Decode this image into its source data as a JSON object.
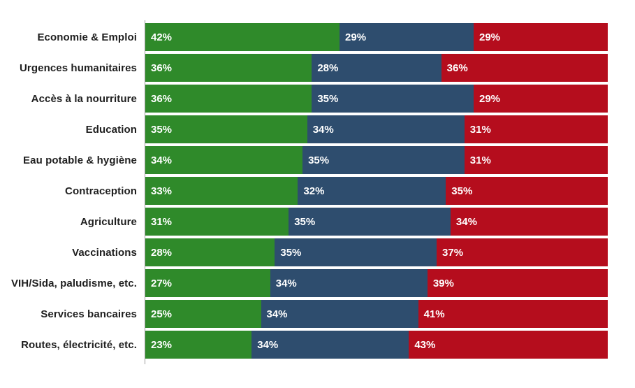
{
  "page": {
    "background": "#ffffff"
  },
  "colors": {
    "axis_line": "#9a9a9a",
    "category_text": "#1f1f1f",
    "value_text": "#ffffff",
    "series_green": "#2f8a2a",
    "series_blue": "#2e4d6e",
    "series_red": "#b50d1d"
  },
  "chart_data": {
    "type": "bar",
    "variant": "stacked-horizontal",
    "title": "",
    "xlabel": "",
    "ylabel": "",
    "xlim": [
      0,
      100
    ],
    "value_suffix": "%",
    "grid": false,
    "legend": "none",
    "categories": [
      "Economie & Emploi",
      "Urgences humanitaires",
      "Accès à la nourriture",
      "Education",
      "Eau potable & hygiène",
      "Contraception",
      "Agriculture",
      "Vaccinations",
      "VIH/Sida, paludisme, etc.",
      "Services bancaires",
      "Routes, électricité, etc."
    ],
    "series": [
      {
        "name": "green",
        "color": "#2f8a2a",
        "values": [
          42,
          36,
          36,
          35,
          34,
          33,
          31,
          28,
          27,
          25,
          23
        ]
      },
      {
        "name": "blue",
        "color": "#2e4d6e",
        "values": [
          29,
          28,
          35,
          34,
          35,
          32,
          35,
          35,
          34,
          34,
          34
        ]
      },
      {
        "name": "red",
        "color": "#b50d1d",
        "values": [
          29,
          36,
          29,
          31,
          31,
          35,
          34,
          37,
          39,
          41,
          43
        ]
      }
    ]
  }
}
